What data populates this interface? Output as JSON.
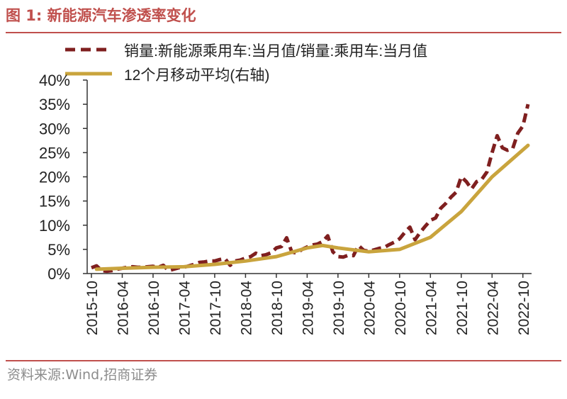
{
  "figure": {
    "title": "图 1:  新能源汽车渗透率变化",
    "source": "资料来源:Wind,招商证券",
    "accent_color": "#c0504d"
  },
  "chart_data": {
    "type": "line",
    "x_tick_labels": [
      "2015-10",
      "2016-04",
      "2016-10",
      "2017-04",
      "2017-10",
      "2018-04",
      "2018-10",
      "2019-04",
      "2019-10",
      "2020-04",
      "2020-10",
      "2021-04",
      "2021-10",
      "2022-04",
      "2022-10"
    ],
    "y_tick_labels": [
      "0%",
      "5%",
      "10%",
      "15%",
      "20%",
      "25%",
      "30%",
      "35%",
      "40%"
    ],
    "ylim": [
      0,
      40
    ],
    "x_range": [
      "2015-10",
      "2022-11"
    ],
    "grid": false,
    "legend_position": "top",
    "series": [
      {
        "name": "销量:新能源乘用车:当月值/销量:乘用车:当月值",
        "style": "dashed",
        "color": "#7f1f1f",
        "x": [
          "2015-10",
          "2015-11",
          "2015-12",
          "2016-01",
          "2016-02",
          "2016-03",
          "2016-04",
          "2016-05",
          "2016-06",
          "2016-07",
          "2016-08",
          "2016-09",
          "2016-10",
          "2016-11",
          "2016-12",
          "2017-01",
          "2017-02",
          "2017-03",
          "2017-04",
          "2017-05",
          "2017-06",
          "2017-07",
          "2017-08",
          "2017-09",
          "2017-10",
          "2017-11",
          "2017-12",
          "2018-01",
          "2018-02",
          "2018-03",
          "2018-04",
          "2018-05",
          "2018-06",
          "2018-07",
          "2018-08",
          "2018-09",
          "2018-10",
          "2018-11",
          "2018-12",
          "2019-01",
          "2019-02",
          "2019-03",
          "2019-04",
          "2019-05",
          "2019-06",
          "2019-07",
          "2019-08",
          "2019-09",
          "2019-10",
          "2019-11",
          "2019-12",
          "2020-01",
          "2020-02",
          "2020-03",
          "2020-04",
          "2020-05",
          "2020-06",
          "2020-07",
          "2020-08",
          "2020-09",
          "2020-10",
          "2020-11",
          "2020-12",
          "2021-01",
          "2021-02",
          "2021-03",
          "2021-04",
          "2021-05",
          "2021-06",
          "2021-07",
          "2021-08",
          "2021-09",
          "2021-10",
          "2021-11",
          "2021-12",
          "2022-01",
          "2022-02",
          "2022-03",
          "2022-04",
          "2022-05",
          "2022-06",
          "2022-07",
          "2022-08",
          "2022-09",
          "2022-10",
          "2022-11"
        ],
        "values": [
          1.2,
          1.6,
          0.6,
          0.5,
          0.6,
          0.9,
          1.1,
          1.3,
          1.4,
          1.3,
          1.3,
          1.4,
          1.5,
          1.3,
          1.7,
          0.6,
          0.9,
          1.2,
          1.3,
          1.6,
          1.9,
          2.3,
          2.4,
          2.6,
          2.6,
          2.9,
          3.1,
          1.7,
          2.6,
          2.8,
          3.2,
          3.5,
          4.2,
          3.7,
          3.9,
          4.3,
          5.3,
          5.6,
          7.4,
          4.5,
          4.2,
          5.0,
          5.5,
          5.9,
          6.1,
          6.6,
          7.8,
          4.5,
          3.5,
          3.4,
          3.8,
          3.7,
          5.8,
          4.8,
          4.6,
          4.9,
          5.2,
          5.4,
          6.0,
          6.5,
          7.2,
          8.5,
          9.6,
          7.0,
          8.5,
          9.8,
          11.0,
          11.5,
          13.5,
          14.5,
          15.8,
          16.8,
          20.0,
          19.0,
          17.5,
          19.0,
          19.5,
          21.0,
          25.0,
          28.5,
          26.0,
          25.5,
          25.8,
          29.0,
          30.5,
          35.0
        ]
      },
      {
        "name": "12个月移动平均(右轴)",
        "style": "solid",
        "color": "#c9a43d",
        "x": [
          "2015-11",
          "2016-04",
          "2016-10",
          "2017-04",
          "2017-10",
          "2018-04",
          "2018-10",
          "2019-04",
          "2019-07",
          "2019-10",
          "2020-04",
          "2020-10",
          "2021-04",
          "2021-10",
          "2022-04",
          "2022-11"
        ],
        "values": [
          0.9,
          1.1,
          1.3,
          1.4,
          1.9,
          2.6,
          3.5,
          5.3,
          5.8,
          5.3,
          4.5,
          5.0,
          7.5,
          12.8,
          20.0,
          26.5
        ]
      }
    ]
  }
}
